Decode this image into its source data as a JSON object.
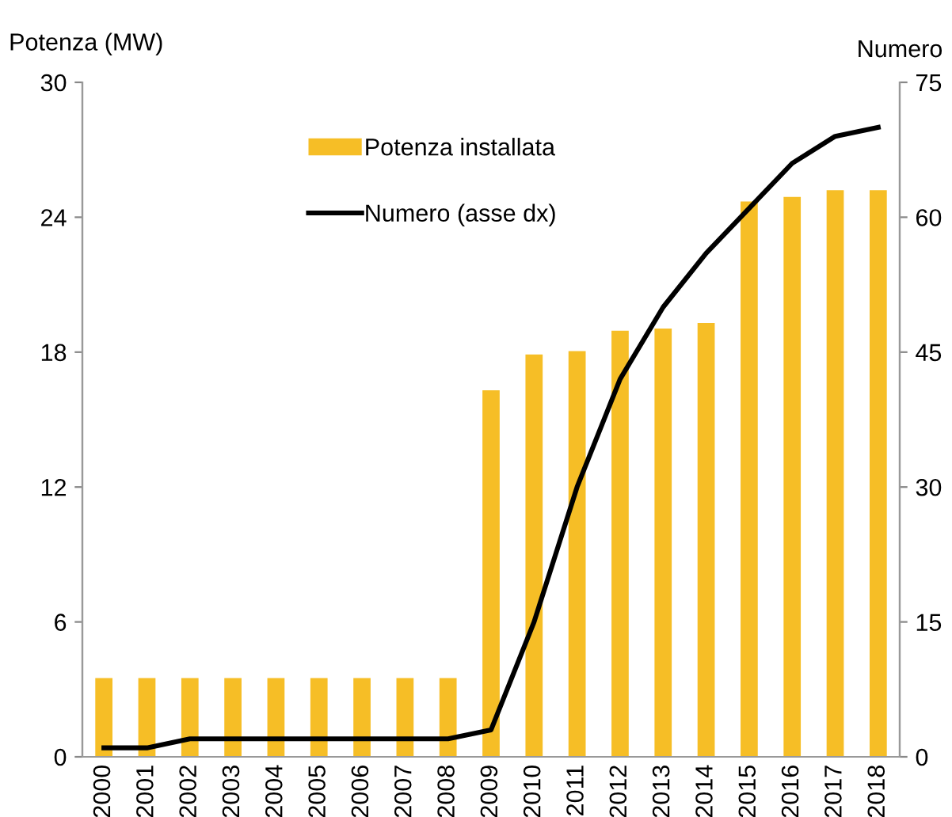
{
  "chart_data": {
    "type": "bar",
    "ylabel": "Potenza (MW)",
    "y2label": "Numero",
    "categories": [
      "2000",
      "2001",
      "2002",
      "2003",
      "2004",
      "2005",
      "2006",
      "2007",
      "2008",
      "2009",
      "2010",
      "2011",
      "2012",
      "2013",
      "2014",
      "2015",
      "2016",
      "2017",
      "2018"
    ],
    "series": [
      {
        "name": "Potenza installata",
        "color": "#f6be26",
        "values": [
          3.5,
          3.5,
          3.5,
          3.5,
          3.5,
          3.5,
          3.5,
          3.5,
          3.5,
          16.3,
          17.9,
          18.05,
          18.95,
          19.05,
          19.3,
          24.7,
          24.9,
          25.2,
          25.2
        ]
      },
      {
        "name": "Numero (asse dx)",
        "type": "line",
        "axis": "y2",
        "color": "#000000",
        "values": [
          1,
          1,
          2,
          2,
          2,
          2,
          2,
          2,
          2,
          3,
          15,
          30,
          42,
          50,
          56,
          61,
          66,
          69,
          70
        ]
      }
    ],
    "ylim": [
      0,
      30
    ],
    "yticks": [
      0,
      6,
      12,
      18,
      24,
      30
    ],
    "y2lim": [
      0,
      75
    ],
    "y2ticks": [
      0,
      15,
      30,
      45,
      60,
      75
    ],
    "grid": false,
    "legend": "top"
  }
}
